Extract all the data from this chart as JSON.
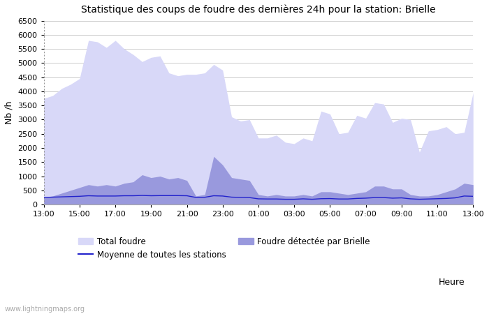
{
  "title": "Statistique des coups de foudre des dernières 24h pour la station: Brielle",
  "ylabel": "Nb /h",
  "xlabel": "Heure",
  "watermark": "www.lightningmaps.org",
  "ylim": [
    0,
    6500
  ],
  "yticks": [
    0,
    500,
    1000,
    1500,
    2000,
    2500,
    3000,
    3500,
    4000,
    4500,
    5000,
    5500,
    6000,
    6500
  ],
  "xtick_labels": [
    "13:00",
    "15:00",
    "17:00",
    "19:00",
    "21:00",
    "23:00",
    "01:00",
    "03:00",
    "05:00",
    "07:00",
    "09:00",
    "11:00",
    "13:00"
  ],
  "color_total": "#d8d8f8",
  "color_brielle": "#9999dd",
  "color_mean": "#2222cc",
  "background_color": "#ffffff",
  "grid_color": "#cccccc",
  "total_foudre": [
    3750,
    3850,
    4100,
    4250,
    4450,
    5800,
    5750,
    5550,
    5800,
    5500,
    5300,
    5050,
    5200,
    5250,
    4650,
    4550,
    4600,
    4600,
    4650,
    4950,
    4750,
    3100,
    2950,
    3000,
    2350,
    2350,
    2450,
    2200,
    2150,
    2350,
    2250,
    3300,
    3200,
    2500,
    2550,
    3150,
    3050,
    3600,
    3550,
    2900,
    3050,
    3000,
    1850,
    2600,
    2650,
    2750,
    2500,
    2550,
    3950
  ],
  "brielle": [
    250,
    300,
    400,
    500,
    600,
    700,
    650,
    700,
    650,
    750,
    800,
    1050,
    950,
    1000,
    900,
    950,
    850,
    300,
    350,
    1700,
    1400,
    950,
    900,
    850,
    350,
    300,
    350,
    300,
    300,
    350,
    300,
    450,
    450,
    400,
    350,
    400,
    450,
    650,
    650,
    550,
    550,
    350,
    300,
    300,
    350,
    450,
    550,
    750,
    700
  ],
  "mean_line": [
    250,
    260,
    270,
    280,
    290,
    310,
    300,
    300,
    300,
    310,
    310,
    320,
    310,
    315,
    315,
    315,
    310,
    250,
    255,
    310,
    300,
    260,
    250,
    245,
    200,
    195,
    195,
    185,
    185,
    200,
    185,
    205,
    210,
    195,
    195,
    215,
    225,
    245,
    245,
    225,
    235,
    200,
    185,
    195,
    205,
    215,
    235,
    300,
    290
  ]
}
